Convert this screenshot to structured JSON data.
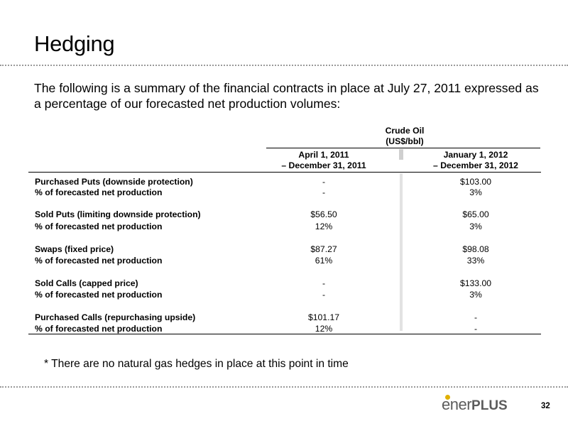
{
  "title": "Hedging",
  "intro": "The following is a summary of the financial contracts in place at July 27, 2011 expressed as a percentage of our forecasted net production volumes:",
  "table": {
    "group_header": {
      "line1": "Crude Oil",
      "line2": "(US$/bbl)"
    },
    "columns": [
      {
        "line1": "April 1, 2011",
        "line2": "– December 31, 2011"
      },
      {
        "line1": "January 1, 2012",
        "line2": "– December 31, 2012"
      }
    ],
    "rows": [
      {
        "label": "Purchased Puts (downside protection)",
        "c1": "-",
        "c2": "$103.00"
      },
      {
        "label": "% of forecasted net production",
        "c1": "-",
        "c2": "3%"
      },
      {
        "label": "Sold Puts (limiting downside protection)",
        "c1": "$56.50",
        "c2": "$65.00"
      },
      {
        "label": "% of forecasted net production",
        "c1": "12%",
        "c2": "3%"
      },
      {
        "label": "Swaps (fixed price)",
        "c1": "$87.27",
        "c2": "$98.08"
      },
      {
        "label": "% of forecasted net production",
        "c1": "61%",
        "c2": "33%"
      },
      {
        "label": "Sold Calls (capped price)",
        "c1": "-",
        "c2": "$133.00"
      },
      {
        "label": "% of forecasted net production",
        "c1": "-",
        "c2": "3%"
      },
      {
        "label": "Purchased Calls (repurchasing upside)",
        "c1": "$101.17",
        "c2": "-"
      },
      {
        "label": "% of forecasted net production",
        "c1": "12%",
        "c2": "-"
      }
    ]
  },
  "footnote": "*  There are no natural gas hedges in place at this point in time",
  "logo": {
    "text_light": "ener",
    "text_bold": "PLUS",
    "accent_color": "#e0b000"
  },
  "page_number": "32"
}
